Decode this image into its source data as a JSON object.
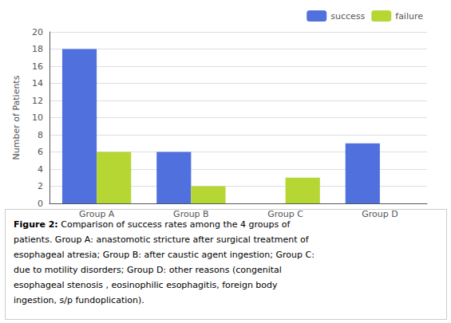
{
  "chart_data": {
    "type": "bar",
    "categories": [
      "Group A",
      "Group B",
      "Group C",
      "Group D"
    ],
    "series": [
      {
        "name": "success",
        "values": [
          18,
          6,
          0,
          7
        ]
      },
      {
        "name": "failure",
        "values": [
          6,
          2,
          3,
          0
        ]
      }
    ],
    "ylabel": "Number of Patients",
    "ylim": [
      0,
      20
    ],
    "yticks": [
      0,
      2,
      4,
      6,
      8,
      10,
      12,
      14,
      16,
      18,
      20
    ],
    "grid": true,
    "legend": "upper right",
    "caption": {
      "label": "Figure 2:",
      "lines": [
        "Comparison of success rates among the 4 groups of",
        "patients. Group A: anastomotic stricture after surgical treatment of",
        "esophageal atresia; Group B: after caustic agent ingestion; Group C:",
        "due to motility disorders; Group D: other reasons (congenital",
        "esophageal stenosis , eosinophilic esophagitis, foreign body",
        "ingestion, s/p fundoplication)."
      ]
    }
  }
}
